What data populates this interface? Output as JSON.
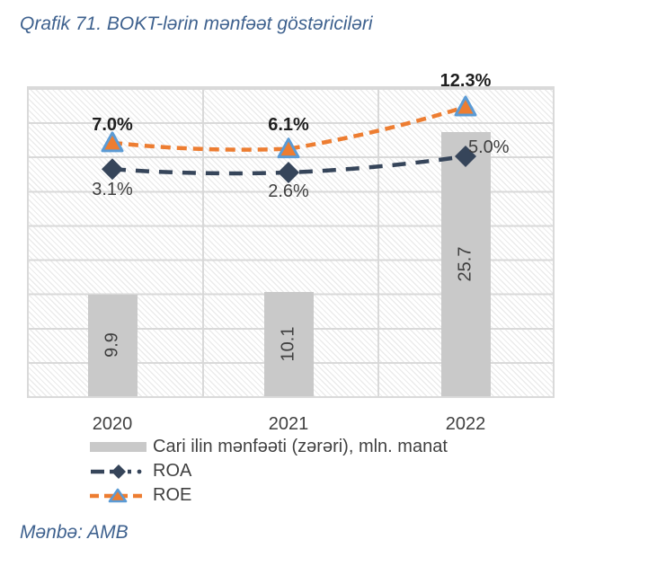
{
  "title": "Qrafik 71. BOKT-lərin mənfəət göstəriciləri",
  "source": "Mənbə: AMB",
  "colors": {
    "title_text": "#3F628F",
    "label_text": "#404040",
    "bold_label_text": "#1F1F1F",
    "gridline": "#D9D9D9",
    "plot_hatch": "#E6E6E6"
  },
  "chart_data": {
    "type": "combo-bar-line",
    "categories": [
      "2020",
      "2021",
      "2022"
    ],
    "series": [
      {
        "name": "Cari ilin mənfəəti (zərəri), mln. manat",
        "type": "bar",
        "values": [
          9.9,
          10.1,
          25.7
        ],
        "labels": [
          "9.9",
          "10.1",
          "25.7"
        ],
        "color": "#C9C9C9"
      },
      {
        "name": "ROA",
        "type": "line",
        "values": [
          3.1,
          2.6,
          5.0
        ],
        "labels": [
          "3.1%",
          "2.6%",
          "5.0%"
        ],
        "color": "#36455A",
        "marker": "diamond"
      },
      {
        "name": "ROE",
        "type": "line",
        "values": [
          7.0,
          6.1,
          12.3
        ],
        "labels": [
          "7.0%",
          "6.1%",
          "12.3%"
        ],
        "color": "#ED7D31",
        "marker": "triangle",
        "marker_border_color": "#5B9BD5"
      }
    ],
    "grid": true,
    "plot_background": "diagonal-hatch",
    "legend_position": "bottom-left",
    "y_axis_labels_visible": false
  }
}
